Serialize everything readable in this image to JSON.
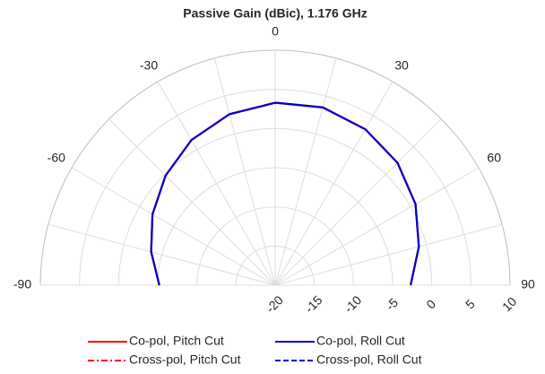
{
  "chart_data": {
    "type": "polar",
    "title": "Passive Gain (dBic), 1.176 GHz",
    "theta": [
      -90,
      -75,
      -60,
      -45,
      -30,
      -15,
      0,
      15,
      30,
      45,
      60,
      75,
      90
    ],
    "thetalim": [
      -90,
      90
    ],
    "thetaticks": [
      -90,
      -60,
      -30,
      0,
      30,
      60,
      90
    ],
    "rlim": [
      -20,
      10
    ],
    "rticks": [
      -20,
      -15,
      -10,
      -5,
      0,
      5,
      10
    ],
    "grid": true,
    "legend": "bottom",
    "series": [
      {
        "name": "Co-pol, Pitch Cut",
        "color": "#ff0000",
        "dash": "solid",
        "values": [
          -5.2,
          -3.6,
          -1.9,
          -0.2,
          1.4,
          2.6,
          3.3,
          3.5,
          3.0,
          2.1,
          0.7,
          -1.0,
          -2.7
        ]
      },
      {
        "name": "Co-pol, Roll Cut",
        "color": "#0000cc",
        "dash": "solid",
        "values": [
          -5.2,
          -3.6,
          -1.9,
          -0.2,
          1.4,
          2.6,
          3.3,
          3.5,
          3.0,
          2.1,
          0.7,
          -1.0,
          -2.7
        ]
      },
      {
        "name": "Cross-pol, Pitch Cut",
        "color": "#ff0000",
        "dash": "dashdot",
        "values": [
          null,
          null,
          null,
          null,
          null,
          null,
          null,
          null,
          null,
          null,
          null,
          null,
          null
        ]
      },
      {
        "name": "Cross-pol, Roll Cut",
        "color": "#0000cc",
        "dash": "dashed",
        "values": [
          null,
          null,
          null,
          null,
          null,
          null,
          null,
          null,
          null,
          null,
          null,
          null,
          null
        ]
      }
    ]
  }
}
